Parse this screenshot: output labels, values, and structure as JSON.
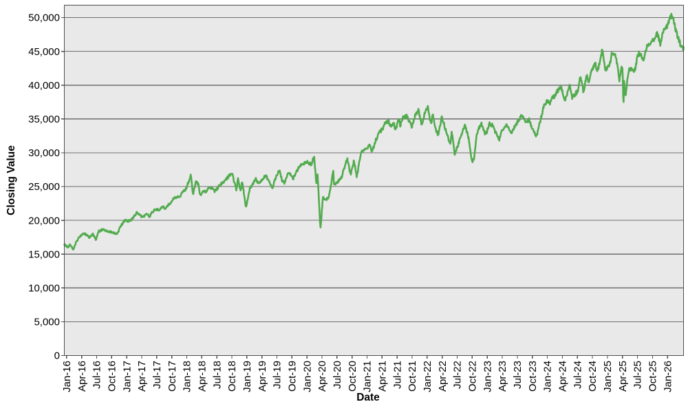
{
  "chart_data": {
    "type": "line",
    "title": "",
    "xlabel": "Date",
    "ylabel": "Closing Value",
    "legend": "none",
    "grid": "horizontal-only",
    "x_unit": "months since Jan-2016",
    "xlim_months": [
      -0.45,
      123.2
    ],
    "ylim": [
      0,
      51830
    ],
    "x_tick_month_positions": [
      0,
      3,
      6,
      9,
      12,
      15,
      18,
      21,
      24,
      27,
      30,
      33,
      36,
      39,
      42,
      45,
      48,
      51,
      54,
      57,
      60,
      63,
      66,
      69,
      72,
      75,
      78,
      81,
      84,
      87,
      90,
      93,
      96,
      99,
      102,
      105,
      108,
      111,
      114,
      117,
      120
    ],
    "x_tick_labels": [
      "Jan-16",
      "Apr-16",
      "Jul-16",
      "Oct-16",
      "Jan-17",
      "Apr-17",
      "Jul-17",
      "Oct-17",
      "Jan-18",
      "Apr-18",
      "Jul-18",
      "Oct-18",
      "Jan-19",
      "Apr-19",
      "Jul-19",
      "Oct-19",
      "Jan-20",
      "Apr-20",
      "Jul-20",
      "Oct-20",
      "Jan-21",
      "Apr-21",
      "Jul-21",
      "Oct-21",
      "Jan-22",
      "Apr-22",
      "Jul-22",
      "Oct-22",
      "Jan-23",
      "Apr-23",
      "Jul-23",
      "Oct-23",
      "Jan-24",
      "Apr-24",
      "Jul-24",
      "Oct-24",
      "Jan-25",
      "Apr-25",
      "Jul-25",
      "Oct-25",
      "Jan-26"
    ],
    "y_tick_values": [
      0,
      5000,
      10000,
      15000,
      20000,
      25000,
      30000,
      35000,
      40000,
      45000,
      50000
    ],
    "y_tick_labels": [
      "0",
      "5,000",
      "10,000",
      "15,000",
      "20,000",
      "25,000",
      "30,000",
      "35,000",
      "40,000",
      "45,000",
      "50,000"
    ],
    "series": [
      {
        "name": "Closing Value",
        "color": "#53ab4f",
        "stroke_width": 2.6,
        "noise_pct": 0.8,
        "noise_seed": 3,
        "sample_step_months": 0.085,
        "anchors_month_value": [
          [
            -0.45,
            16460
          ],
          [
            0.3,
            15990
          ],
          [
            0.65,
            16450
          ],
          [
            1.35,
            15660
          ],
          [
            2.0,
            16900
          ],
          [
            2.65,
            17620
          ],
          [
            3.5,
            18090
          ],
          [
            4.6,
            17435
          ],
          [
            5.2,
            18005
          ],
          [
            5.85,
            17140
          ],
          [
            6.4,
            18350
          ],
          [
            7.2,
            18636
          ],
          [
            8.5,
            18330
          ],
          [
            9.4,
            18150
          ],
          [
            10.1,
            17890
          ],
          [
            10.8,
            19150
          ],
          [
            11.6,
            19975
          ],
          [
            12.3,
            19885
          ],
          [
            12.9,
            20070
          ],
          [
            14.0,
            21115
          ],
          [
            15.1,
            20455
          ],
          [
            16.0,
            20915
          ],
          [
            16.55,
            20610
          ],
          [
            17.5,
            21530
          ],
          [
            18.5,
            21580
          ],
          [
            19.2,
            22120
          ],
          [
            19.6,
            21675
          ],
          [
            20.5,
            22410
          ],
          [
            21.5,
            23330
          ],
          [
            22.6,
            23590
          ],
          [
            23.9,
            24720
          ],
          [
            24.8,
            26615
          ],
          [
            25.25,
            23860
          ],
          [
            25.8,
            25710
          ],
          [
            26.3,
            25335
          ],
          [
            26.7,
            23535
          ],
          [
            27.3,
            24410
          ],
          [
            27.9,
            24165
          ],
          [
            28.6,
            25015
          ],
          [
            29.6,
            24255
          ],
          [
            30.5,
            25120
          ],
          [
            31.6,
            25820
          ],
          [
            32.5,
            26655
          ],
          [
            33.1,
            26830
          ],
          [
            33.9,
            24445
          ],
          [
            34.25,
            26190
          ],
          [
            34.75,
            24285
          ],
          [
            35.1,
            25825
          ],
          [
            35.8,
            21790
          ],
          [
            36.6,
            24705
          ],
          [
            37.8,
            26090
          ],
          [
            38.3,
            25450
          ],
          [
            39.75,
            26655
          ],
          [
            41.1,
            24820
          ],
          [
            41.9,
            26600
          ],
          [
            42.5,
            27360
          ],
          [
            43.15,
            25720
          ],
          [
            43.5,
            25580
          ],
          [
            44.4,
            27180
          ],
          [
            45.25,
            26165
          ],
          [
            46.5,
            28005
          ],
          [
            47.9,
            28645
          ],
          [
            48.9,
            28255
          ],
          [
            49.4,
            29550
          ],
          [
            49.9,
            25410
          ],
          [
            50.1,
            27090
          ],
          [
            50.7,
            18590
          ],
          [
            51.2,
            23720
          ],
          [
            51.6,
            23020
          ],
          [
            52.3,
            23250
          ],
          [
            52.9,
            25550
          ],
          [
            53.25,
            27570
          ],
          [
            53.4,
            25130
          ],
          [
            54.2,
            25705
          ],
          [
            54.9,
            26315
          ],
          [
            55.8,
            28655
          ],
          [
            56.05,
            29100
          ],
          [
            56.7,
            26765
          ],
          [
            57.4,
            28840
          ],
          [
            57.95,
            26500
          ],
          [
            58.8,
            30045
          ],
          [
            59.9,
            30605
          ],
          [
            60.65,
            31190
          ],
          [
            60.95,
            29980
          ],
          [
            61.8,
            31960
          ],
          [
            62.5,
            33015
          ],
          [
            63.1,
            33525
          ],
          [
            63.5,
            34200
          ],
          [
            64.3,
            34740
          ],
          [
            64.6,
            33895
          ],
          [
            65.4,
            34395
          ],
          [
            65.6,
            33290
          ],
          [
            66.4,
            34995
          ],
          [
            66.6,
            33960
          ],
          [
            67.2,
            35210
          ],
          [
            67.9,
            35400
          ],
          [
            68.5,
            34585
          ],
          [
            68.95,
            33845
          ],
          [
            69.5,
            35295
          ],
          [
            70.25,
            36430
          ],
          [
            70.95,
            34020
          ],
          [
            71.5,
            35900
          ],
          [
            71.95,
            36400
          ],
          [
            72.1,
            36800
          ],
          [
            72.8,
            34160
          ],
          [
            73.1,
            35630
          ],
          [
            73.8,
            33225
          ],
          [
            74.2,
            32630
          ],
          [
            74.9,
            35295
          ],
          [
            75.9,
            32975
          ],
          [
            76.6,
            31255
          ],
          [
            76.9,
            33215
          ],
          [
            77.5,
            29890
          ],
          [
            78.1,
            30970
          ],
          [
            78.9,
            32845
          ],
          [
            79.5,
            34150
          ],
          [
            80.3,
            32150
          ],
          [
            80.95,
            28725
          ],
          [
            81.4,
            29040
          ],
          [
            81.9,
            32860
          ],
          [
            82.8,
            34350
          ],
          [
            83.6,
            32760
          ],
          [
            83.95,
            33145
          ],
          [
            84.4,
            34300
          ],
          [
            85.0,
            34090
          ],
          [
            85.9,
            32655
          ],
          [
            86.4,
            31875
          ],
          [
            86.9,
            33275
          ],
          [
            87.9,
            34100
          ],
          [
            88.8,
            32765
          ],
          [
            89.9,
            34410
          ],
          [
            90.95,
            35560
          ],
          [
            91.6,
            34500
          ],
          [
            92.4,
            34905
          ],
          [
            92.95,
            33510
          ],
          [
            93.85,
            32420
          ],
          [
            94.8,
            35390
          ],
          [
            95.4,
            37090
          ],
          [
            95.95,
            37690
          ],
          [
            96.5,
            37265
          ],
          [
            96.95,
            38150
          ],
          [
            97.4,
            38275
          ],
          [
            98.0,
            39085
          ],
          [
            98.7,
            39780
          ],
          [
            99.55,
            37755
          ],
          [
            100.3,
            39510
          ],
          [
            100.55,
            40005
          ],
          [
            100.9,
            38110
          ],
          [
            101.5,
            38590
          ],
          [
            102.2,
            39345
          ],
          [
            102.55,
            41200
          ],
          [
            103.0,
            40350
          ],
          [
            103.15,
            38705
          ],
          [
            103.9,
            41565
          ],
          [
            104.2,
            40345
          ],
          [
            104.95,
            42330
          ],
          [
            105.6,
            43275
          ],
          [
            105.95,
            41765
          ],
          [
            106.9,
            44910
          ],
          [
            107.1,
            45015
          ],
          [
            107.6,
            42325
          ],
          [
            107.95,
            42545
          ],
          [
            108.5,
            43220
          ],
          [
            108.95,
            44880
          ],
          [
            109.6,
            44625
          ],
          [
            109.9,
            43240
          ],
          [
            110.4,
            40815
          ],
          [
            110.8,
            42590
          ],
          [
            111.05,
            42225
          ],
          [
            111.15,
            38315
          ],
          [
            111.25,
            37645
          ],
          [
            111.32,
            40610
          ],
          [
            111.65,
            38170
          ],
          [
            111.95,
            40670
          ],
          [
            112.4,
            42410
          ],
          [
            112.95,
            42270
          ],
          [
            113.5,
            42215
          ],
          [
            113.95,
            44095
          ],
          [
            114.3,
            44650
          ],
          [
            114.95,
            44130
          ],
          [
            115.1,
            43590
          ],
          [
            115.9,
            45635
          ],
          [
            116.4,
            46110
          ],
          [
            116.95,
            46400
          ],
          [
            117.6,
            47205
          ],
          [
            117.9,
            47705
          ],
          [
            118.65,
            45910
          ],
          [
            118.95,
            47425
          ],
          [
            119.5,
            48460
          ],
          [
            119.95,
            48790
          ],
          [
            120.4,
            49800
          ],
          [
            120.7,
            50310
          ],
          [
            121.1,
            49900
          ],
          [
            121.5,
            48600
          ],
          [
            122.0,
            47300
          ],
          [
            122.6,
            46000
          ],
          [
            123.2,
            45250
          ]
        ]
      }
    ]
  },
  "style": {
    "outer_bg": "#ffffff",
    "plot_bg": "#e9e9e9",
    "grid_color": "#6f6f6f",
    "border_color": "#4d4d4d",
    "tick_color": "#4d4d4d",
    "text_color": "#000000"
  }
}
